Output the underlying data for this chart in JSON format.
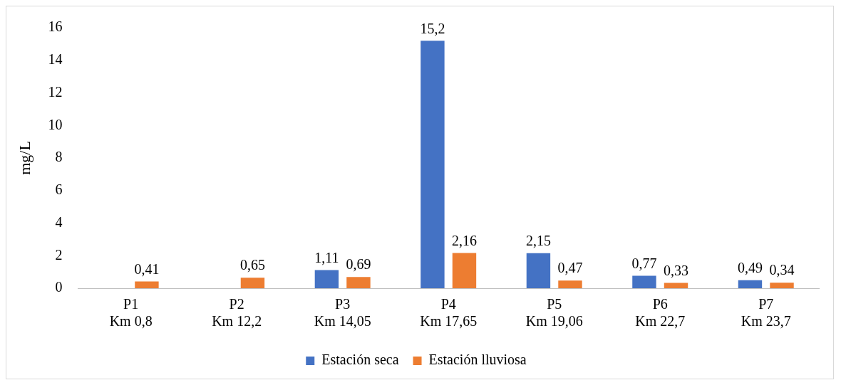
{
  "chart_data": {
    "type": "bar",
    "ylabel": "mg/L",
    "categories": [
      "P1\nKm 0,8",
      "P2\nKm 12,2",
      "P3\nKm 14,05",
      "P4\nKm 17,65",
      "P5\nKm 19,06",
      "P6\nKm 22,7",
      "P7\nKm 23,7"
    ],
    "ylim": [
      0,
      16
    ],
    "yticks": [
      0,
      2,
      4,
      6,
      8,
      10,
      12,
      14,
      16
    ],
    "grid": false,
    "legend": "bottom",
    "series": [
      {
        "name": "Estación seca",
        "color": "#4472c4",
        "values": [
          null,
          null,
          1.11,
          15.2,
          2.15,
          0.77,
          0.49
        ],
        "value_labels": [
          null,
          null,
          "1,11",
          "15,2",
          "2,15",
          "0,77",
          "0,49"
        ]
      },
      {
        "name": "Estación lluviosa",
        "color": "#ed7d31",
        "values": [
          0.41,
          0.65,
          0.69,
          2.16,
          0.47,
          0.33,
          0.34
        ],
        "value_labels": [
          "0,41",
          "0,65",
          "0,69",
          "2,16",
          "0,47",
          "0,33",
          "0,34"
        ]
      }
    ]
  }
}
